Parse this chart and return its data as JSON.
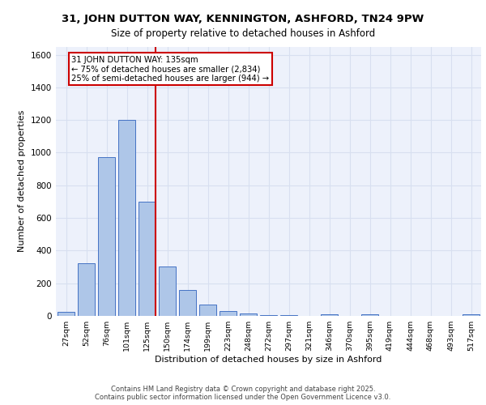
{
  "title_line1": "31, JOHN DUTTON WAY, KENNINGTON, ASHFORD, TN24 9PW",
  "title_line2": "Size of property relative to detached houses in Ashford",
  "xlabel": "Distribution of detached houses by size in Ashford",
  "ylabel": "Number of detached properties",
  "categories": [
    "27sqm",
    "52sqm",
    "76sqm",
    "101sqm",
    "125sqm",
    "150sqm",
    "174sqm",
    "199sqm",
    "223sqm",
    "248sqm",
    "272sqm",
    "297sqm",
    "321sqm",
    "346sqm",
    "370sqm",
    "395sqm",
    "419sqm",
    "444sqm",
    "468sqm",
    "493sqm",
    "517sqm"
  ],
  "values": [
    25,
    325,
    975,
    1200,
    700,
    305,
    158,
    70,
    28,
    15,
    5,
    5,
    0,
    10,
    0,
    12,
    0,
    0,
    0,
    0,
    10
  ],
  "bar_color": "#aec6e8",
  "bar_edge_color": "#4472c4",
  "grid_color": "#d8dff0",
  "background_color": "#edf1fb",
  "vline_color": "#cc0000",
  "vline_pos": 4.4,
  "annotation_text": "31 JOHN DUTTON WAY: 135sqm\n← 75% of detached houses are smaller (2,834)\n25% of semi-detached houses are larger (944) →",
  "annotation_box_color": "#ffffff",
  "annotation_box_edge": "#cc0000",
  "ylim": [
    0,
    1650
  ],
  "yticks": [
    0,
    200,
    400,
    600,
    800,
    1000,
    1200,
    1400,
    1600
  ],
  "footer_line1": "Contains HM Land Registry data © Crown copyright and database right 2025.",
  "footer_line2": "Contains public sector information licensed under the Open Government Licence v3.0."
}
